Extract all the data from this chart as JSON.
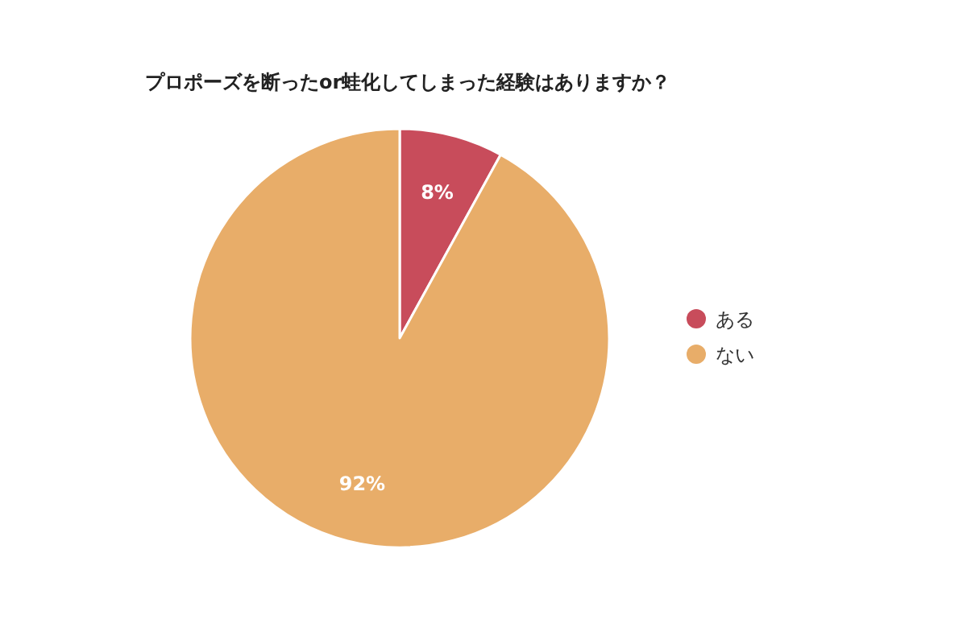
{
  "chart_data": {
    "type": "pie",
    "title": "プロポーズを断ったor蛙化してしまった経験はありますか？",
    "categories": [
      "ある",
      "ない"
    ],
    "values": [
      8,
      92
    ],
    "colors": [
      "#c84c5b",
      "#e8ad69"
    ],
    "value_labels": [
      "8%",
      "92%"
    ],
    "legend": "right"
  }
}
